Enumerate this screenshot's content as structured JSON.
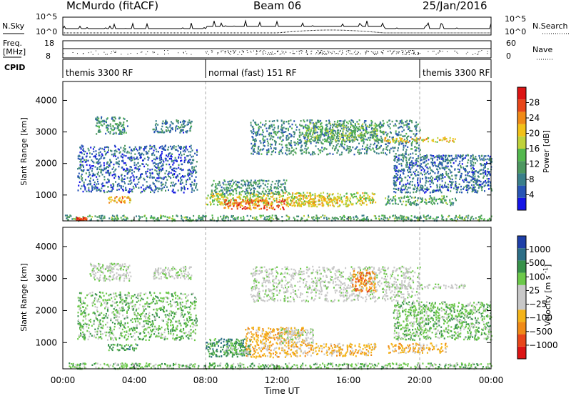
{
  "header": {
    "station": "McMurdo (fitACF)",
    "beam": "Beam 06",
    "date": "25/Jan/2016"
  },
  "top_panels": {
    "nsky_label": "N.Sky",
    "nsearch_label": "N.Search",
    "noise_ticks": [
      "10^5",
      "10^0"
    ],
    "freq_label_line1": "Freq.",
    "freq_label_line2": "[MHz]",
    "freq_ticks": [
      "18",
      "8"
    ],
    "nave_label": "Nave",
    "nave_ticks": [
      "60",
      "0"
    ],
    "cpid_label": "CPID",
    "cpid_segments": [
      {
        "label": "themis 3300 RF",
        "start_hour": 0,
        "end_hour": 8
      },
      {
        "label": "normal (fast) 151 RF",
        "start_hour": 8,
        "end_hour": 20
      },
      {
        "label": "themis 3300 RF",
        "start_hour": 20,
        "end_hour": 24
      }
    ]
  },
  "colors": {
    "power_scale": [
      "#1414e6",
      "#2855b5",
      "#3a7f8a",
      "#4d9860",
      "#53b84e",
      "#bfd23a",
      "#f2c118",
      "#f08a17",
      "#e8461a",
      "#dc1414"
    ],
    "velocity_scale": [
      "#1e3fa8",
      "#2c6e86",
      "#37924a",
      "#6cc94a",
      "#c8c8c8",
      "#c8c8c8",
      "#f4b41a",
      "#f08a17",
      "#e8461a",
      "#dc1414"
    ]
  },
  "chart_data": [
    {
      "type": "heatmap",
      "panel": "power",
      "ylabel": "Slant Range [km]",
      "xlim": [
        0,
        24
      ],
      "ylim": [
        180,
        4600
      ],
      "yticks": [
        "1000",
        "2000",
        "3000",
        "4000"
      ],
      "colorbar": {
        "label": "Power [dB]",
        "range": [
          0,
          32
        ],
        "ticks": [
          "4",
          "8",
          "12",
          "16",
          "20",
          "24",
          "28"
        ]
      },
      "regions": [
        {
          "t0": 0.1,
          "t1": 24.0,
          "r0": 200,
          "r1": 380,
          "v": 12
        },
        {
          "t0": 0.7,
          "t1": 1.3,
          "r0": 220,
          "r1": 300,
          "v": 28
        },
        {
          "t0": 2.5,
          "t1": 3.8,
          "r0": 780,
          "r1": 980,
          "v": 22
        },
        {
          "t0": 1.8,
          "t1": 3.6,
          "r0": 2950,
          "r1": 3500,
          "v": 10
        },
        {
          "t0": 5.0,
          "t1": 7.2,
          "r0": 3000,
          "r1": 3400,
          "v": 8
        },
        {
          "t0": 0.8,
          "t1": 7.5,
          "r0": 1100,
          "r1": 2600,
          "v": 6
        },
        {
          "t0": 8.0,
          "t1": 17.5,
          "r0": 700,
          "r1": 1100,
          "v": 18
        },
        {
          "t0": 9.0,
          "t1": 12.5,
          "r0": 560,
          "r1": 880,
          "v": 26
        },
        {
          "t0": 12.5,
          "t1": 16.0,
          "r0": 650,
          "r1": 1000,
          "v": 20
        },
        {
          "t0": 8.3,
          "t1": 12.5,
          "r0": 1050,
          "r1": 1500,
          "v": 10
        },
        {
          "t0": 10.5,
          "t1": 20.0,
          "r0": 2300,
          "r1": 3400,
          "v": 9
        },
        {
          "t0": 18.0,
          "t1": 22.0,
          "r0": 2700,
          "r1": 2850,
          "v": 20
        },
        {
          "t0": 13.5,
          "t1": 18.0,
          "r0": 2700,
          "r1": 3300,
          "v": 14
        },
        {
          "t0": 18.5,
          "t1": 24.0,
          "r0": 1100,
          "r1": 2300,
          "v": 7
        },
        {
          "t0": 18.0,
          "t1": 22.0,
          "r0": 700,
          "r1": 1000,
          "v": 12
        }
      ]
    },
    {
      "type": "heatmap",
      "panel": "velocity",
      "ylabel": "Slant Range [km]",
      "xlabel": "Time UT",
      "xlim": [
        0,
        24
      ],
      "ylim": [
        180,
        4600
      ],
      "yticks": [
        "1000",
        "2000",
        "3000",
        "4000"
      ],
      "xticks": [
        "00:00",
        "04:00",
        "08:00",
        "12:00",
        "16:00",
        "20:00",
        "00:00"
      ],
      "colorbar": {
        "label": "Velocity [m s^-1]",
        "ticks": [
          "1000",
          "500",
          "100",
          "25",
          "−25",
          "−100",
          "−500",
          "−1000"
        ]
      },
      "regions": [
        {
          "t0": 0.1,
          "t1": 24.0,
          "r0": 200,
          "r1": 380,
          "v": 3
        },
        {
          "t0": 2.5,
          "t1": 4.2,
          "r0": 780,
          "r1": 980,
          "v": 2
        },
        {
          "t0": 1.5,
          "t1": 3.8,
          "r0": 2950,
          "r1": 3500,
          "v": 4
        },
        {
          "t0": 5.0,
          "t1": 7.2,
          "r0": 3000,
          "r1": 3400,
          "v": 4
        },
        {
          "t0": 0.8,
          "t1": 7.5,
          "r0": 1100,
          "r1": 2600,
          "v": 3
        },
        {
          "t0": 8.0,
          "t1": 10.5,
          "r0": 580,
          "r1": 1150,
          "v": 2
        },
        {
          "t0": 9.0,
          "t1": 10.2,
          "r0": 650,
          "r1": 1000,
          "v": 3
        },
        {
          "t0": 10.2,
          "t1": 13.5,
          "r0": 550,
          "r1": 1500,
          "v": 6
        },
        {
          "t0": 13.5,
          "t1": 17.5,
          "r0": 600,
          "r1": 1000,
          "v": 6
        },
        {
          "t0": 12.0,
          "t1": 14.0,
          "r0": 1000,
          "r1": 1450,
          "v": 4
        },
        {
          "t0": 10.5,
          "t1": 20.0,
          "r0": 2300,
          "r1": 3400,
          "v": 4
        },
        {
          "t0": 16.2,
          "t1": 17.5,
          "r0": 2600,
          "r1": 3300,
          "v": 7
        },
        {
          "t0": 18.0,
          "t1": 22.5,
          "r0": 2700,
          "r1": 2850,
          "v": 4
        },
        {
          "t0": 18.5,
          "t1": 24.0,
          "r0": 1100,
          "r1": 2300,
          "v": 3
        },
        {
          "t0": 18.2,
          "t1": 21.5,
          "r0": 700,
          "r1": 1000,
          "v": 6
        }
      ]
    }
  ]
}
